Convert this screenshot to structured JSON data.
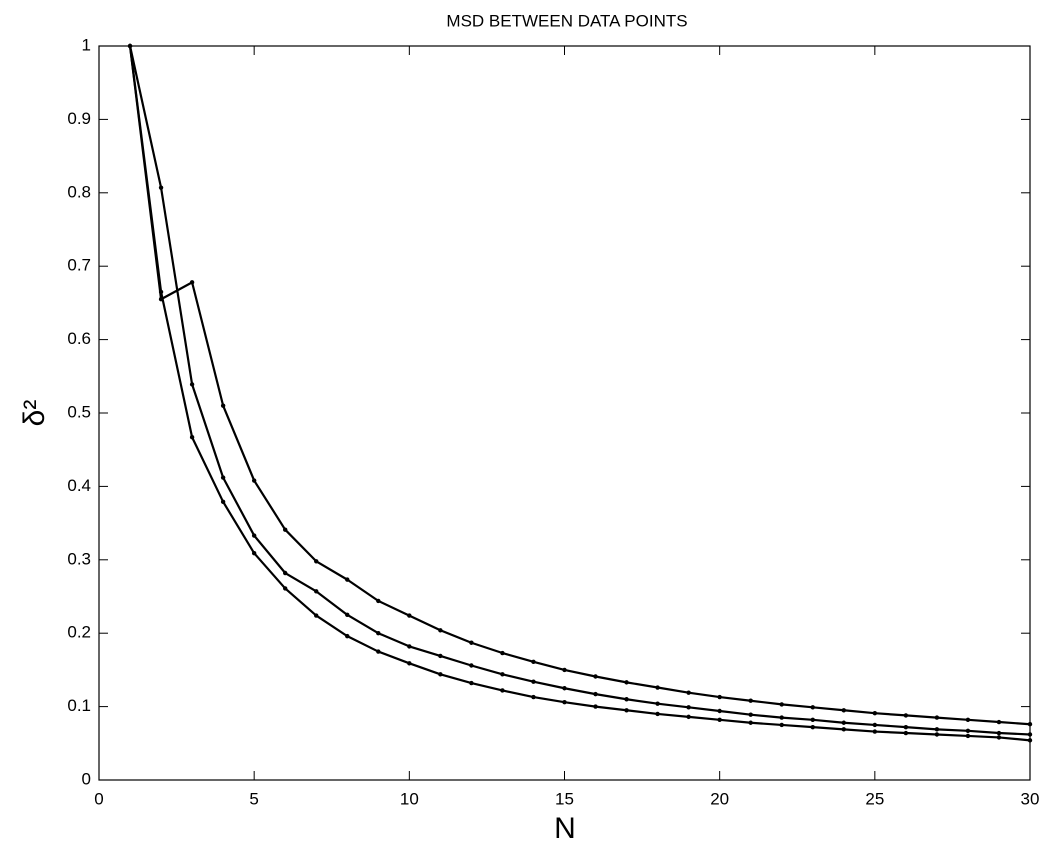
{
  "chart_data": {
    "type": "line",
    "title": "MSD BETWEEN DATA POINTS",
    "x_label": "N",
    "y_label": "δ²",
    "x": [
      1,
      2,
      3,
      4,
      5,
      6,
      7,
      8,
      9,
      10,
      11,
      12,
      13,
      14,
      15,
      16,
      17,
      18,
      19,
      20,
      21,
      22,
      23,
      24,
      25,
      26,
      27,
      28,
      29,
      30
    ],
    "series": [
      {
        "color": "#000000",
        "values": [
          1,
          0.655,
          0.678,
          0.51,
          0.408,
          0.341,
          0.298,
          0.273,
          0.244,
          0.224,
          0.204,
          0.187,
          0.173,
          0.161,
          0.15,
          0.141,
          0.133,
          0.126,
          0.119,
          0.113,
          0.108,
          0.103,
          0.099,
          0.095,
          0.091,
          0.088,
          0.085,
          0.082,
          0.079,
          0.076
        ]
      },
      {
        "color": "#000000",
        "values": [
          1,
          0.807,
          0.539,
          0.412,
          0.333,
          0.282,
          0.257,
          0.225,
          0.2,
          0.182,
          0.169,
          0.156,
          0.144,
          0.134,
          0.125,
          0.117,
          0.11,
          0.104,
          0.099,
          0.094,
          0.089,
          0.085,
          0.082,
          0.078,
          0.075,
          0.072,
          0.069,
          0.067,
          0.064,
          0.062
        ]
      },
      {
        "color": "#000000",
        "values": [
          1,
          0.665,
          0.467,
          0.379,
          0.309,
          0.261,
          0.224,
          0.196,
          0.175,
          0.159,
          0.144,
          0.132,
          0.122,
          0.113,
          0.106,
          0.1,
          0.095,
          0.09,
          0.086,
          0.082,
          0.078,
          0.075,
          0.072,
          0.069,
          0.066,
          0.064,
          0.062,
          0.06,
          0.058,
          0.054
        ]
      }
    ],
    "xlim": [
      0,
      30
    ],
    "xticks": [
      0,
      5,
      10,
      15,
      20,
      25,
      30
    ],
    "ylim": [
      0,
      1
    ],
    "yticks": [
      0,
      0.1,
      0.2,
      0.3,
      0.4,
      0.5,
      0.6,
      0.7,
      0.8,
      0.9,
      1
    ],
    "grid": false
  }
}
